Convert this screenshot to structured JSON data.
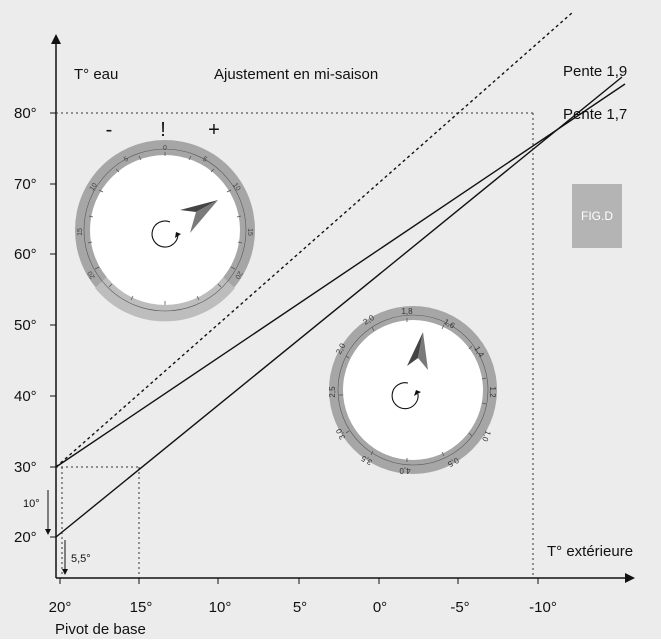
{
  "labels": {
    "y_axis": "T° eau",
    "title": "Ajustement en mi-saison",
    "x_axis": "T° extérieure",
    "pivot": "Pivot de base",
    "figure": "FIG.D",
    "curve_a": "Pente 1,9",
    "curve_b": "Pente 1,7",
    "offset_10": "10°",
    "offset_55": "5,5°"
  },
  "y_ticks": [
    "80°",
    "70°",
    "60°",
    "50°",
    "40°",
    "30°",
    "20°"
  ],
  "x_ticks": [
    "20°",
    "15°",
    "10°",
    "5°",
    "0°",
    "-5°",
    "-10°"
  ],
  "left_dial": {
    "marks": {
      "minus": "-",
      "exclaim": "!",
      "plus": "+"
    },
    "numbers": [
      "0",
      "5",
      "10",
      "15",
      "20",
      "5",
      "10",
      "15",
      "20"
    ]
  },
  "right_dial": {
    "numbers": [
      "1,8",
      "1,6",
      "1,4",
      "1,2",
      "1,0",
      "0,5",
      "4,0",
      "3,5",
      "3,0",
      "2,5",
      "2,0",
      "2,0"
    ]
  },
  "colors": {
    "background": "#ececec",
    "dial_ring": "#a6a6a6",
    "dial_face": "#ffffff",
    "figure_badge": "#b4b4b4"
  },
  "icons": [
    "rotate-arrow-icon",
    "needle-icon"
  ]
}
